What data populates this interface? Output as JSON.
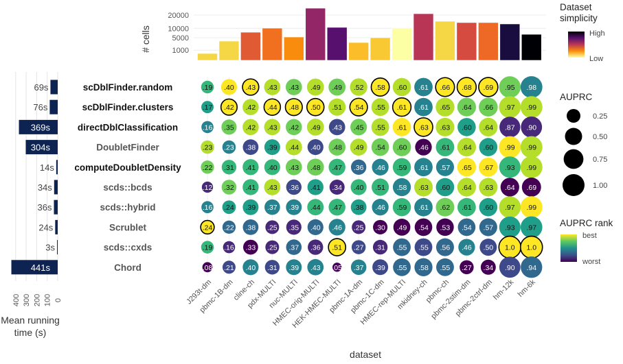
{
  "chart_data": {
    "type": "scatter",
    "subtype": "dot-matrix with marginal bar charts",
    "xlabel": "dataset",
    "datasets": [
      "J293t-dm",
      "pbmc-1B-dm",
      "cline-ch",
      "pdx-MULTI",
      "nuc-MULTI",
      "HMEC-orig-MULTI",
      "HEK-HMEC-MULTI",
      "pbmc-1A-dm",
      "pbmc-1C-dm",
      "HMEC-rep-MULTI",
      "mkidney-ch",
      "pbmc-ch",
      "pbmc-2stim-dm",
      "pbmc-2ctrl-dm",
      "hm-12k",
      "hm-6k"
    ],
    "methods": [
      {
        "name": "scDblFinder.random",
        "bold_black": true,
        "runtime_s": 69,
        "runtime_label": "69s"
      },
      {
        "name": "scDblFinder.clusters",
        "bold_black": true,
        "runtime_s": 76,
        "runtime_label": "76s"
      },
      {
        "name": "directDblClassification",
        "bold_black": true,
        "runtime_s": 369,
        "runtime_label": "369s"
      },
      {
        "name": "DoubletFinder",
        "bold_black": false,
        "runtime_s": 304,
        "runtime_label": "304s"
      },
      {
        "name": "computeDoubletDensity",
        "bold_black": true,
        "runtime_s": 14,
        "runtime_label": "14s"
      },
      {
        "name": "scds::bcds",
        "bold_black": false,
        "runtime_s": 34,
        "runtime_label": "34s"
      },
      {
        "name": "scds::hybrid",
        "bold_black": false,
        "runtime_s": 36,
        "runtime_label": "36s"
      },
      {
        "name": "Scrublet",
        "bold_black": false,
        "runtime_s": 24,
        "runtime_label": "24s"
      },
      {
        "name": "scds::cxds",
        "bold_black": false,
        "runtime_s": 3,
        "runtime_label": "3s"
      },
      {
        "name": "Chord",
        "bold_black": false,
        "runtime_s": 441,
        "runtime_label": "441s"
      }
    ],
    "auprc": [
      [
        0.19,
        0.4,
        0.43,
        0.43,
        0.43,
        0.49,
        0.49,
        0.52,
        0.58,
        0.6,
        0.61,
        0.66,
        0.68,
        0.69,
        0.95,
        0.98
      ],
      [
        0.17,
        0.42,
        0.42,
        0.44,
        0.48,
        0.5,
        0.51,
        0.54,
        0.55,
        0.61,
        0.61,
        0.65,
        0.64,
        0.66,
        0.97,
        0.99
      ],
      [
        0.16,
        0.35,
        0.42,
        0.43,
        0.42,
        0.49,
        0.43,
        0.45,
        0.55,
        0.61,
        0.63,
        0.63,
        0.6,
        0.64,
        0.87,
        0.9
      ],
      [
        0.23,
        0.23,
        0.38,
        0.39,
        0.44,
        0.4,
        0.48,
        0.49,
        0.54,
        0.6,
        0.46,
        0.61,
        0.64,
        0.6,
        0.99,
        0.99
      ],
      [
        0.22,
        0.31,
        0.41,
        0.4,
        0.43,
        0.48,
        0.47,
        0.36,
        0.46,
        0.59,
        0.61,
        0.57,
        0.65,
        0.67,
        0.93,
        0.99
      ],
      [
        0.12,
        0.32,
        0.41,
        0.43,
        0.36,
        0.41,
        0.34,
        0.4,
        0.51,
        0.58,
        0.63,
        0.6,
        0.64,
        0.63,
        0.64,
        0.69
      ],
      [
        0.16,
        0.24,
        0.39,
        0.37,
        0.39,
        0.44,
        0.47,
        0.38,
        0.46,
        0.59,
        0.61,
        0.62,
        0.61,
        0.6,
        0.97,
        0.99
      ],
      [
        0.24,
        0.22,
        0.38,
        0.25,
        0.35,
        0.4,
        0.46,
        0.25,
        0.3,
        0.49,
        0.54,
        0.53,
        0.54,
        0.57,
        0.93,
        0.97
      ],
      [
        0.19,
        0.16,
        0.33,
        0.25,
        0.37,
        0.36,
        0.51,
        0.27,
        0.31,
        0.55,
        0.55,
        0.56,
        0.46,
        0.5,
        1.0,
        1.0
      ],
      [
        0.08,
        0.21,
        0.4,
        0.31,
        0.39,
        0.43,
        0.05,
        0.37,
        0.39,
        0.55,
        0.58,
        0.55,
        0.27,
        0.34,
        0.9,
        0.94
      ]
    ],
    "auprc_labels": [
      [
        ".19",
        ".40",
        ".43",
        ".43",
        ".43",
        ".49",
        ".49",
        ".52",
        ".58",
        ".60",
        ".61",
        ".66",
        ".68",
        ".69",
        ".95",
        ".98"
      ],
      [
        ".17",
        ".42",
        ".42",
        ".44",
        ".48",
        ".50",
        ".51",
        ".54",
        ".55",
        ".61",
        ".61",
        ".65",
        ".64",
        ".66",
        ".97",
        ".99"
      ],
      [
        ".16",
        ".35",
        ".42",
        ".43",
        ".42",
        ".49",
        ".43",
        ".45",
        ".55",
        ".61",
        ".63",
        ".63",
        ".60",
        ".64",
        ".87",
        ".90"
      ],
      [
        ".23",
        ".23",
        ".38",
        ".39",
        ".44",
        ".40",
        ".48",
        ".49",
        ".54",
        ".60",
        ".46",
        ".61",
        ".64",
        ".60",
        ".99",
        ".99"
      ],
      [
        ".22",
        ".31",
        ".41",
        ".40",
        ".43",
        ".48",
        ".47",
        ".36",
        ".46",
        ".59",
        ".61",
        ".57",
        ".65",
        ".67",
        ".93",
        ".99"
      ],
      [
        ".12",
        ".32",
        ".41",
        ".43",
        ".36",
        ".41",
        ".34",
        ".40",
        ".51",
        ".58",
        ".63",
        ".60",
        ".64",
        ".63",
        ".64",
        ".69"
      ],
      [
        ".16",
        ".24",
        ".39",
        ".37",
        ".39",
        ".44",
        ".47",
        ".38",
        ".46",
        ".59",
        ".61",
        ".62",
        ".61",
        ".60",
        ".97",
        ".99"
      ],
      [
        ".24",
        ".22",
        ".38",
        ".25",
        ".35",
        ".40",
        ".46",
        ".25",
        ".30",
        ".49",
        ".54",
        ".53",
        ".54",
        ".57",
        ".93",
        ".97"
      ],
      [
        ".19",
        ".16",
        ".33",
        ".25",
        ".37",
        ".36",
        ".51",
        ".27",
        ".31",
        ".55",
        ".55",
        ".56",
        ".46",
        ".50",
        "1.0",
        "1.0"
      ],
      [
        ".08",
        ".21",
        ".40",
        ".31",
        ".39",
        ".43",
        ".05",
        ".37",
        ".39",
        ".55",
        ".58",
        ".55",
        ".27",
        ".34",
        ".90",
        ".94"
      ]
    ],
    "auprc_rank": [
      [
        4,
        1,
        1,
        2,
        3,
        2,
        3,
        2,
        1,
        2,
        6,
        1,
        1,
        1,
        3,
        6
      ],
      [
        5,
        1,
        2,
        1,
        1,
        1,
        2,
        1,
        2,
        1,
        6,
        2,
        3,
        3,
        2,
        2
      ],
      [
        6,
        3,
        2,
        2,
        3,
        2,
        8,
        3,
        2,
        1,
        1,
        2,
        5,
        2,
        9,
        9
      ],
      [
        2,
        6,
        8,
        5,
        2,
        8,
        3,
        2,
        3,
        3,
        10,
        4,
        2,
        5,
        1,
        2
      ],
      [
        3,
        4,
        4,
        4,
        3,
        3,
        4,
        7,
        6,
        4,
        6,
        6,
        1,
        1,
        4,
        2
      ],
      [
        9,
        3,
        4,
        2,
        8,
        5,
        9,
        4,
        4,
        6,
        2,
        5,
        2,
        2,
        10,
        10
      ],
      [
        6,
        5,
        5,
        6,
        6,
        4,
        4,
        5,
        6,
        4,
        6,
        3,
        4,
        5,
        2,
        1
      ],
      [
        1,
        7,
        7,
        9,
        9,
        7,
        6,
        9,
        10,
        10,
        10,
        10,
        7,
        7,
        5,
        5
      ],
      [
        4,
        9,
        10,
        9,
        7,
        9,
        1,
        8,
        9,
        7,
        8,
        7,
        6,
        8,
        1,
        1
      ],
      [
        10,
        8,
        6,
        8,
        6,
        6,
        10,
        6,
        8,
        7,
        7,
        7,
        10,
        10,
        8,
        7
      ]
    ],
    "best_per_dataset": [
      [
        false,
        false,
        true,
        false,
        false,
        false,
        false,
        false,
        true,
        false,
        false,
        true,
        true,
        true,
        false,
        false
      ],
      [
        false,
        true,
        false,
        true,
        true,
        true,
        false,
        true,
        false,
        true,
        false,
        false,
        false,
        false,
        false,
        false
      ],
      [
        false,
        false,
        false,
        false,
        false,
        false,
        false,
        false,
        false,
        false,
        true,
        false,
        false,
        false,
        false,
        false
      ],
      [
        false,
        false,
        false,
        false,
        false,
        false,
        false,
        false,
        false,
        false,
        false,
        false,
        false,
        false,
        false,
        false
      ],
      [
        false,
        false,
        false,
        false,
        false,
        false,
        false,
        false,
        false,
        false,
        false,
        false,
        false,
        false,
        false,
        false
      ],
      [
        false,
        false,
        false,
        false,
        false,
        false,
        false,
        false,
        false,
        false,
        false,
        false,
        false,
        false,
        false,
        false
      ],
      [
        false,
        false,
        false,
        false,
        false,
        false,
        false,
        false,
        false,
        false,
        false,
        false,
        false,
        false,
        false,
        false
      ],
      [
        true,
        false,
        false,
        false,
        false,
        false,
        false,
        false,
        false,
        false,
        false,
        false,
        false,
        false,
        false,
        false
      ],
      [
        false,
        false,
        false,
        false,
        false,
        false,
        true,
        false,
        false,
        false,
        false,
        false,
        false,
        false,
        true,
        true
      ],
      [
        false,
        false,
        false,
        false,
        false,
        false,
        false,
        false,
        false,
        false,
        false,
        false,
        false,
        false,
        false,
        false
      ]
    ],
    "cells_panel": {
      "type": "bar",
      "ylabel": "# cells",
      "yscale": "sqrt",
      "yticks": [
        1000,
        5000,
        10000,
        20000
      ],
      "ytick_labels": [
        "1000",
        "5000",
        "10000",
        "20000"
      ],
      "values": [
        460,
        3600,
        7700,
        10100,
        5300,
        26500,
        10600,
        3100,
        5000,
        10100,
        21200,
        14900,
        13900,
        13900,
        12900,
        6600
      ],
      "simplicity": [
        0.22,
        0.24,
        0.55,
        0.4,
        0.35,
        0.7,
        0.82,
        0.3,
        0.28,
        0.08,
        0.62,
        0.23,
        0.5,
        0.45,
        0.95,
        1.0
      ],
      "colors": [
        "#f5d746",
        "#f5d746",
        "#e05a33",
        "#f07020",
        "#f98b0d",
        "#932667",
        "#57106e",
        "#fbbe2a",
        "#f8c932",
        "#fcffa4",
        "#b93556",
        "#f5d746",
        "#d64b40",
        "#ed6925",
        "#190c3e",
        "#000004"
      ]
    },
    "runtime_panel": {
      "type": "bar",
      "orientation": "horizontal-reversed",
      "xlabel": "Mean running time (s)",
      "xticks": [
        400,
        300,
        200,
        100,
        0
      ],
      "xtick_labels": [
        "400",
        "300",
        "200",
        "100",
        "0"
      ],
      "xlim": [
        0,
        460
      ],
      "bar_color": "#0d2452"
    },
    "legends": {
      "simplicity": {
        "title": "Dataset simplicity",
        "high": "High",
        "low": "Low",
        "position": "top-right"
      },
      "size": {
        "title": "AUPRC",
        "values": [
          0.25,
          0.5,
          0.75,
          1.0
        ],
        "labels": [
          "0.25",
          "0.50",
          "0.75",
          "1.00"
        ],
        "position": "right"
      },
      "rank": {
        "title": "AUPRC rank",
        "best": "best",
        "worst": "worst",
        "position": "bottom-right"
      }
    }
  }
}
